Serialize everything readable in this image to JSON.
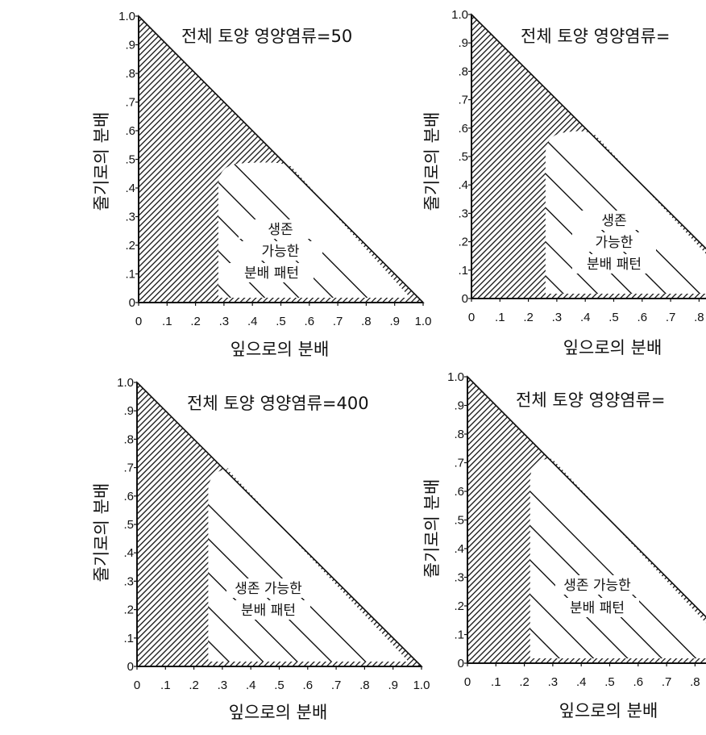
{
  "chart_data": [
    {
      "type": "area",
      "title": "전체 토양 영양염류=50",
      "xlabel": "잎으로의 분배",
      "ylabel": "줄기로의 분배",
      "x_ticks": [
        "0",
        ".1",
        ".2",
        ".3",
        ".4",
        ".5",
        ".6",
        ".7",
        ".8",
        ".9",
        "1.0"
      ],
      "y_ticks": [
        "0",
        ".1",
        ".2",
        ".3",
        ".4",
        ".5",
        ".6",
        ".7",
        ".8",
        ".9",
        "1.0"
      ],
      "xlim": [
        0,
        1
      ],
      "ylim": [
        0,
        1
      ],
      "region_label": [
        "생존",
        "가능한",
        "분배 패턴"
      ],
      "viable_region": {
        "leaf_min": 0.28,
        "stem_max": 0.48
      }
    },
    {
      "type": "area",
      "title": "전체 토양 영양염류=",
      "xlabel": "잎으로의 분배",
      "ylabel": "줄기로의 분배",
      "x_ticks": [
        "0",
        ".1",
        ".2",
        ".3",
        ".4",
        ".5",
        ".6",
        ".7",
        ".8"
      ],
      "y_ticks": [
        "0",
        ".1",
        ".2",
        ".3",
        ".4",
        ".5",
        ".6",
        ".7",
        ".8",
        ".9",
        "1.0"
      ],
      "xlim": [
        0,
        1
      ],
      "ylim": [
        0,
        1
      ],
      "region_label": [
        "생존",
        "가능한",
        "분배 패턴"
      ],
      "viable_region": {
        "leaf_min": 0.26,
        "stem_max": 0.58
      }
    },
    {
      "type": "area",
      "title": "전체 토양 영양염류=400",
      "xlabel": "잎으로의 분배",
      "ylabel": "줄기로의 분배",
      "x_ticks": [
        "0",
        ".1",
        ".2",
        ".3",
        ".4",
        ".5",
        ".6",
        ".7",
        ".8",
        ".9",
        "1.0"
      ],
      "y_ticks": [
        "0",
        ".1",
        ".2",
        ".3",
        ".4",
        ".5",
        ".6",
        ".7",
        ".8",
        ".9",
        "1.0"
      ],
      "xlim": [
        0,
        1
      ],
      "ylim": [
        0,
        1
      ],
      "region_label": [
        "생존 가능한",
        "분배 패턴"
      ],
      "viable_region": {
        "leaf_min": 0.25,
        "stem_max": 0.69
      }
    },
    {
      "type": "area",
      "title": "전체 토양 영양염류=",
      "xlabel": "잎으로의 분배",
      "ylabel": "줄기로의 분배",
      "x_ticks": [
        "0",
        ".1",
        ".2",
        ".3",
        ".4",
        ".5",
        ".6",
        ".7",
        ".8"
      ],
      "y_ticks": [
        "0",
        ".1",
        ".2",
        ".3",
        ".4",
        ".5",
        ".6",
        ".7",
        ".8",
        ".9",
        "1.0"
      ],
      "xlim": [
        0,
        1
      ],
      "ylim": [
        0,
        1
      ],
      "region_label": [
        "생존 가능한",
        "분배 패턴"
      ],
      "viable_region": {
        "leaf_min": 0.22,
        "stem_max": 0.71
      }
    }
  ]
}
